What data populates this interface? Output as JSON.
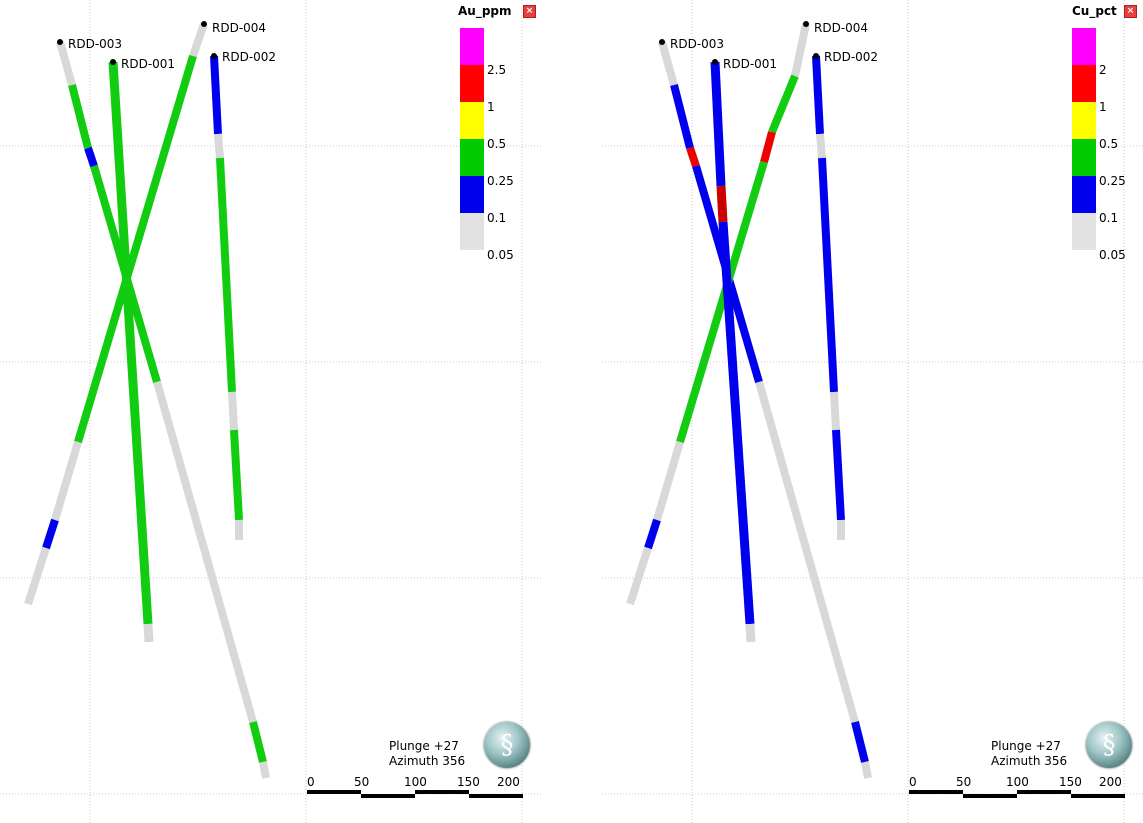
{
  "panels": [
    {
      "legend": {
        "title": "Au_ppm",
        "breaks": [
          "2.5",
          "1",
          "0.5",
          "0.25",
          "0.1",
          "0.05"
        ],
        "colors": [
          "#ff00ff",
          "#ff0000",
          "#ffff00",
          "#00cc00",
          "#0000ee",
          "#e2e2e2"
        ]
      },
      "holes": [
        "RDD-003",
        "RDD-001",
        "RDD-004",
        "RDD-002"
      ],
      "orientation": {
        "plunge": "Plunge +27",
        "azimuth": "Azimuth 356"
      },
      "scale": [
        "0",
        "50",
        "100",
        "150",
        "200"
      ]
    },
    {
      "legend": {
        "title": "Cu_pct",
        "breaks": [
          "2",
          "1",
          "0.5",
          "0.25",
          "0.1",
          "0.05"
        ],
        "colors": [
          "#ff00ff",
          "#ff0000",
          "#ffff00",
          "#00cc00",
          "#0000ee",
          "#e2e2e2"
        ]
      },
      "holes": [
        "RDD-003",
        "RDD-001",
        "RDD-004",
        "RDD-002"
      ],
      "orientation": {
        "plunge": "Plunge +27",
        "azimuth": "Azimuth 356"
      },
      "scale": [
        "0",
        "50",
        "100",
        "150",
        "200"
      ]
    }
  ],
  "icons": {
    "close": "close-icon",
    "compass": "compass-icon"
  }
}
